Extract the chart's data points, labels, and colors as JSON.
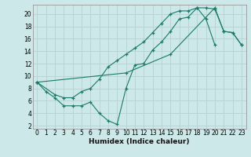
{
  "xlabel": "Humidex (Indice chaleur)",
  "bg_color": "#cce8e8",
  "grid_color": "#b8d4d4",
  "line_color": "#1a7a6a",
  "xlim": [
    -0.5,
    23.5
  ],
  "ylim": [
    1.5,
    21.5
  ],
  "xticks": [
    0,
    1,
    2,
    3,
    4,
    5,
    6,
    7,
    8,
    9,
    10,
    11,
    12,
    13,
    14,
    15,
    16,
    17,
    18,
    19,
    20,
    21,
    22,
    23
  ],
  "yticks": [
    2,
    4,
    6,
    8,
    10,
    12,
    14,
    16,
    18,
    20
  ],
  "line1_x": [
    0,
    1,
    2,
    3,
    4,
    5,
    6,
    7,
    8,
    9,
    10,
    11,
    12,
    13,
    14,
    15,
    16,
    17,
    18,
    19,
    20
  ],
  "line1_y": [
    9.0,
    7.5,
    6.5,
    5.2,
    5.2,
    5.2,
    5.8,
    4.0,
    2.8,
    2.2,
    8.0,
    11.8,
    12.0,
    14.2,
    15.5,
    17.2,
    19.2,
    19.5,
    21.0,
    19.2,
    15.0
  ],
  "line2_x": [
    0,
    2,
    3,
    4,
    5,
    6,
    7,
    8,
    9,
    10,
    11,
    12,
    13,
    14,
    15,
    16,
    17,
    18,
    19,
    20,
    21,
    22,
    23
  ],
  "line2_y": [
    9.0,
    7.0,
    6.5,
    6.5,
    7.5,
    8.0,
    9.5,
    11.5,
    12.5,
    13.5,
    14.5,
    15.5,
    17.0,
    18.5,
    20.0,
    20.5,
    20.5,
    21.0,
    21.0,
    20.8,
    17.2,
    17.0,
    15.0
  ],
  "line3_x": [
    0,
    10,
    15,
    20,
    21,
    22,
    23
  ],
  "line3_y": [
    9.0,
    10.5,
    13.5,
    21.0,
    17.2,
    17.0,
    15.0
  ]
}
